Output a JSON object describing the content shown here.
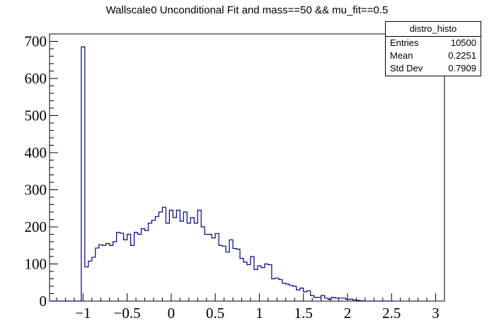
{
  "chart_data": {
    "type": "histogram",
    "title": "Wallscale0 Unconditional Fit and mass==50 && mu_fit==0.5",
    "xlabel": "",
    "ylabel": "",
    "xlim": [
      -1.38,
      3.1
    ],
    "ylim": [
      0,
      720
    ],
    "x_ticks": [
      -1,
      -0.5,
      0,
      0.5,
      1,
      1.5,
      2,
      2.5,
      3
    ],
    "x_tick_labels": [
      "−1",
      "−0.5",
      "0",
      "0.5",
      "1",
      "1.5",
      "2",
      "2.5",
      "3"
    ],
    "y_ticks": [
      0,
      100,
      200,
      300,
      400,
      500,
      600,
      700
    ],
    "y_tick_labels": [
      "0",
      "100",
      "200",
      "300",
      "400",
      "500",
      "600",
      "700"
    ],
    "bin_start": -1.38,
    "bin_width": 0.04,
    "counts": [
      0,
      0,
      0,
      0,
      0,
      0,
      0,
      0,
      0,
      685,
      92,
      108,
      118,
      143,
      152,
      150,
      155,
      150,
      160,
      185,
      183,
      165,
      180,
      150,
      185,
      180,
      195,
      190,
      210,
      218,
      228,
      240,
      253,
      210,
      245,
      225,
      245,
      215,
      240,
      210,
      225,
      210,
      245,
      200,
      180,
      180,
      170,
      182,
      150,
      148,
      132,
      165,
      142,
      140,
      115,
      105,
      98,
      120,
      85,
      95,
      90,
      100,
      98,
      60,
      62,
      58,
      48,
      46,
      42,
      40,
      30,
      35,
      25,
      28,
      15,
      10,
      10,
      15,
      8,
      5,
      10,
      8,
      8,
      8,
      5,
      5,
      3,
      2,
      1,
      0,
      0,
      0,
      0,
      0,
      0,
      0,
      0,
      0
    ],
    "series_color": "#000080",
    "stats_box": {
      "name": "distro_histo",
      "entries_label": "Entries",
      "entries": "10500",
      "mean_label": "Mean",
      "mean": "0.2251",
      "std_label": "Std Dev",
      "std": "0.7909"
    }
  }
}
